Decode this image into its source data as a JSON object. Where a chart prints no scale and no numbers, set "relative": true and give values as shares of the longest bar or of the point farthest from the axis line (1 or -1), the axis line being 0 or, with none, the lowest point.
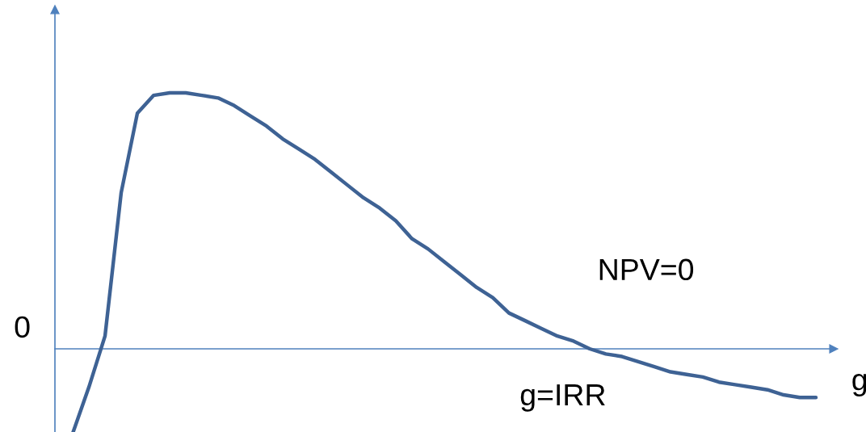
{
  "chart_data": {
    "type": "line",
    "relative": true,
    "xlabel": "g",
    "categories": [
      null,
      null,
      null,
      null,
      null,
      null,
      null,
      null,
      null,
      null,
      null,
      null,
      null,
      null,
      null,
      null,
      null,
      null,
      null,
      null,
      null,
      null,
      null,
      null,
      null,
      null,
      null,
      null,
      null,
      null,
      null,
      null,
      null,
      null,
      null,
      null,
      null,
      null,
      null,
      null,
      null,
      null,
      null,
      null,
      null,
      null,
      null
    ],
    "series": [
      {
        "color": "#3e6294",
        "values": [
          -0.33,
          -0.15,
          0.05,
          0.61,
          0.92,
          0.99,
          1.0,
          1.0,
          0.99,
          0.98,
          0.95,
          0.91,
          0.87,
          0.82,
          0.78,
          0.74,
          0.69,
          0.64,
          0.59,
          0.55,
          0.5,
          0.43,
          0.39,
          0.34,
          0.29,
          0.24,
          0.2,
          0.14,
          0.11,
          0.08,
          0.05,
          0.03,
          0.0,
          -0.02,
          -0.03,
          -0.05,
          -0.07,
          -0.09,
          -0.1,
          -0.11,
          -0.13,
          -0.14,
          -0.15,
          -0.16,
          -0.18,
          -0.19,
          -0.19
        ]
      }
    ],
    "annotations": [
      "NPV=0",
      "g=IRR"
    ],
    "ref_lines": [
      {
        "axis": "y",
        "value": 0,
        "label": "0",
        "color": "#4f81bd"
      }
    ],
    "legend": false,
    "marker": "none",
    "line_style": "solid"
  }
}
